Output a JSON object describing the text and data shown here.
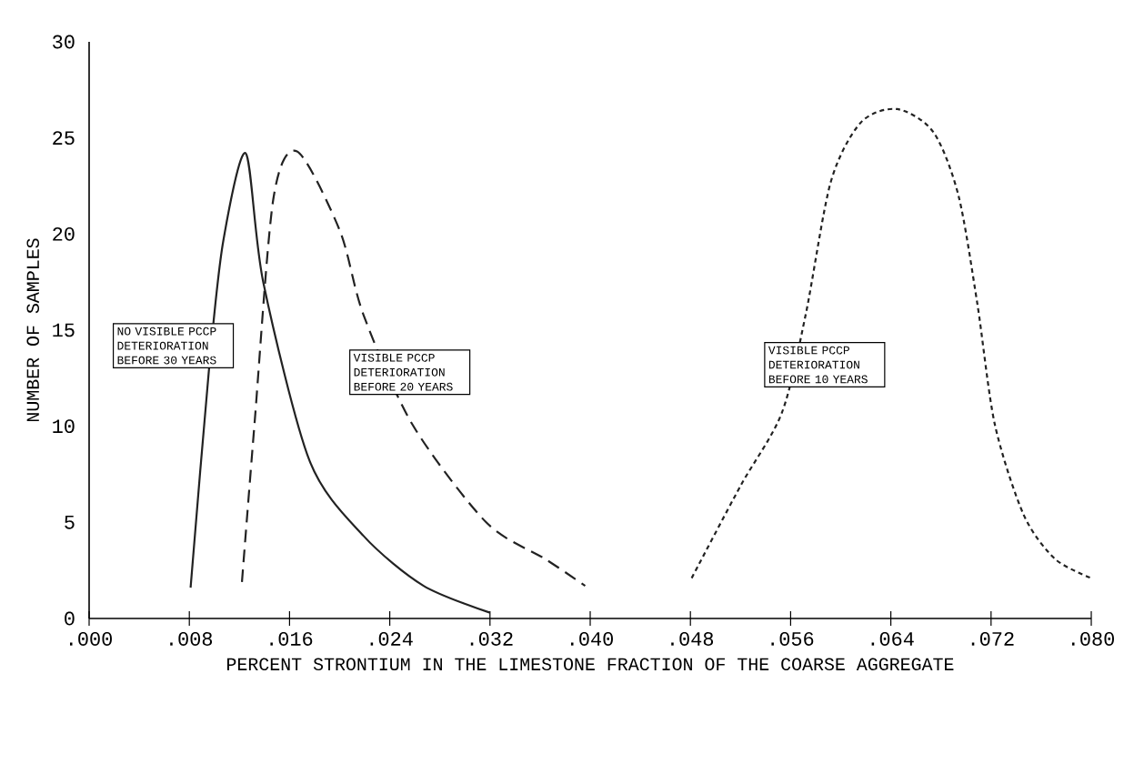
{
  "chart_data": {
    "type": "line",
    "xlabel": "PERCENT STRONTIUM IN THE LIMESTONE FRACTION OF THE COARSE AGGREGATE",
    "ylabel": "NUMBER OF SAMPLES",
    "xlim": [
      0,
      0.08
    ],
    "ylim": [
      0,
      30
    ],
    "xticks": [
      {
        "value": 0,
        "label": ".000"
      },
      {
        "value": 0.008,
        "label": ".008"
      },
      {
        "value": 0.016,
        "label": ".016"
      },
      {
        "value": 0.024,
        "label": ".024"
      },
      {
        "value": 0.032,
        "label": ".032"
      },
      {
        "value": 0.04,
        "label": ".040"
      },
      {
        "value": 0.048,
        "label": ".048"
      },
      {
        "value": 0.056,
        "label": ".056"
      },
      {
        "value": 0.064,
        "label": ".064"
      },
      {
        "value": 0.072,
        "label": ".072"
      },
      {
        "value": 0.08,
        "label": ".080"
      }
    ],
    "yticks": [
      0,
      5,
      10,
      15,
      20,
      25,
      30
    ],
    "grid": false,
    "marker": "none",
    "series": [
      {
        "color": "#222222",
        "line_style": "solid",
        "x": [
          0.0081,
          0.0096,
          0.0107,
          0.0125,
          0.0139,
          0.0176,
          0.0219,
          0.0267,
          0.032
        ],
        "values": [
          1.6,
          13.2,
          19.6,
          24.2,
          17.5,
          8.2,
          4.3,
          1.7,
          0.3
        ]
      },
      {
        "color": "#222222",
        "line_style": "dashed",
        "x": [
          0.0122,
          0.0132,
          0.0147,
          0.0166,
          0.02,
          0.0219,
          0.0258,
          0.0317,
          0.0364,
          0.0396
        ],
        "values": [
          1.9,
          10.1,
          21.8,
          24.3,
          20.2,
          15.8,
          10.1,
          5.0,
          3.1,
          1.7
        ]
      },
      {
        "color": "#222222",
        "line_style": "dotted",
        "x": [
          0.0481,
          0.052,
          0.0553,
          0.0572,
          0.0592,
          0.0616,
          0.0645,
          0.0674,
          0.0694,
          0.0709,
          0.0723,
          0.0746,
          0.0771,
          0.08
        ],
        "values": [
          2.1,
          6.9,
          10.7,
          15.8,
          22.7,
          25.8,
          26.5,
          25.3,
          22.0,
          16.4,
          10.1,
          5.4,
          3.1,
          2.1
        ]
      }
    ],
    "annotations": [
      "NO VISIBLE PCCP DETERIORATION BEFORE 30 YEARS",
      "VISIBLE PCCP DETERIORATION BEFORE 20 YEARS",
      "VISIBLE PCCP DETERIORATION BEFORE 10 YEARS"
    ]
  }
}
